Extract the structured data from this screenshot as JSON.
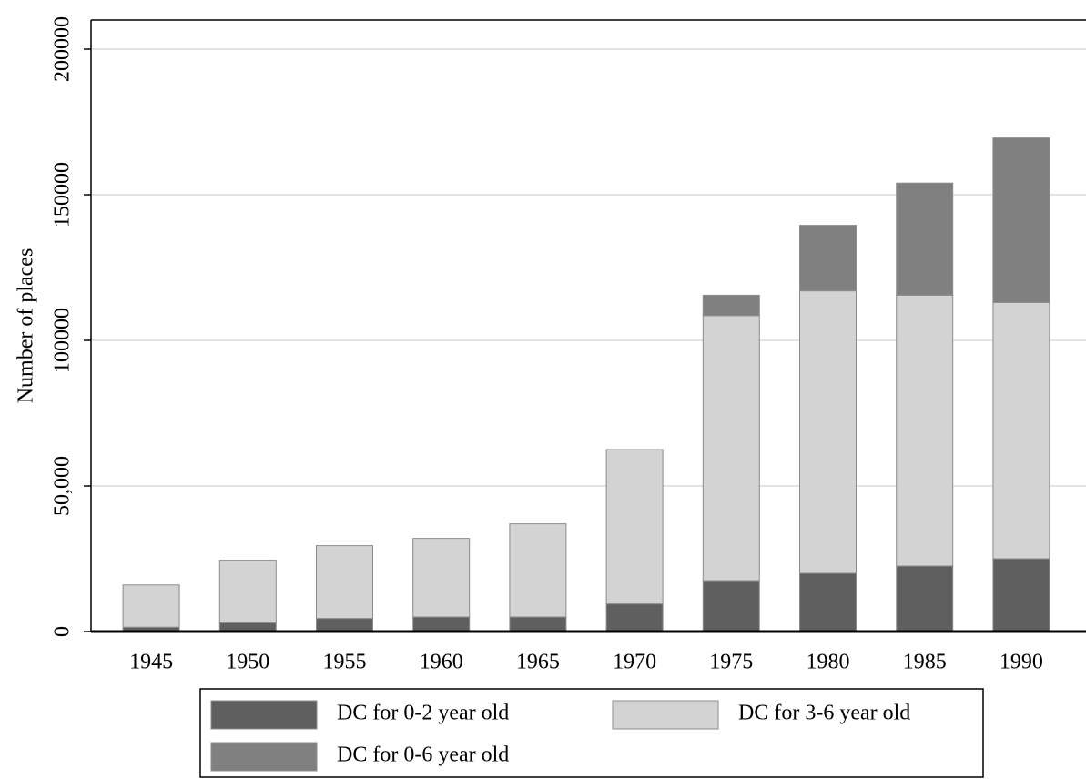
{
  "chart_data": {
    "type": "stacked_bar",
    "ylabel": "Number of places",
    "categories": [
      "1945",
      "1950",
      "1955",
      "1960",
      "1965",
      "1970",
      "1975",
      "1980",
      "1985",
      "1990"
    ],
    "series": [
      {
        "name": "DC for 0-2 year old",
        "color": "#5f5f5f",
        "values": [
          1500,
          3000,
          4500,
          5000,
          5000,
          9500,
          17500,
          20000,
          22500,
          25000
        ]
      },
      {
        "name": "DC for 3-6 year old",
        "color": "#d3d3d3",
        "values": [
          14500,
          21500,
          25000,
          27000,
          32000,
          53000,
          91000,
          97000,
          93000,
          88000
        ]
      },
      {
        "name": "DC for 0-6 year old",
        "color": "#808080",
        "values": [
          0,
          0,
          0,
          0,
          0,
          0,
          7000,
          22500,
          38500,
          56500
        ]
      }
    ],
    "ylim": [
      0,
      210000
    ],
    "yticks": [
      0,
      {
        "value": 50000,
        "label": "50,000"
      },
      100000,
      150000,
      200000
    ],
    "grid": true,
    "legend": "bottom"
  }
}
